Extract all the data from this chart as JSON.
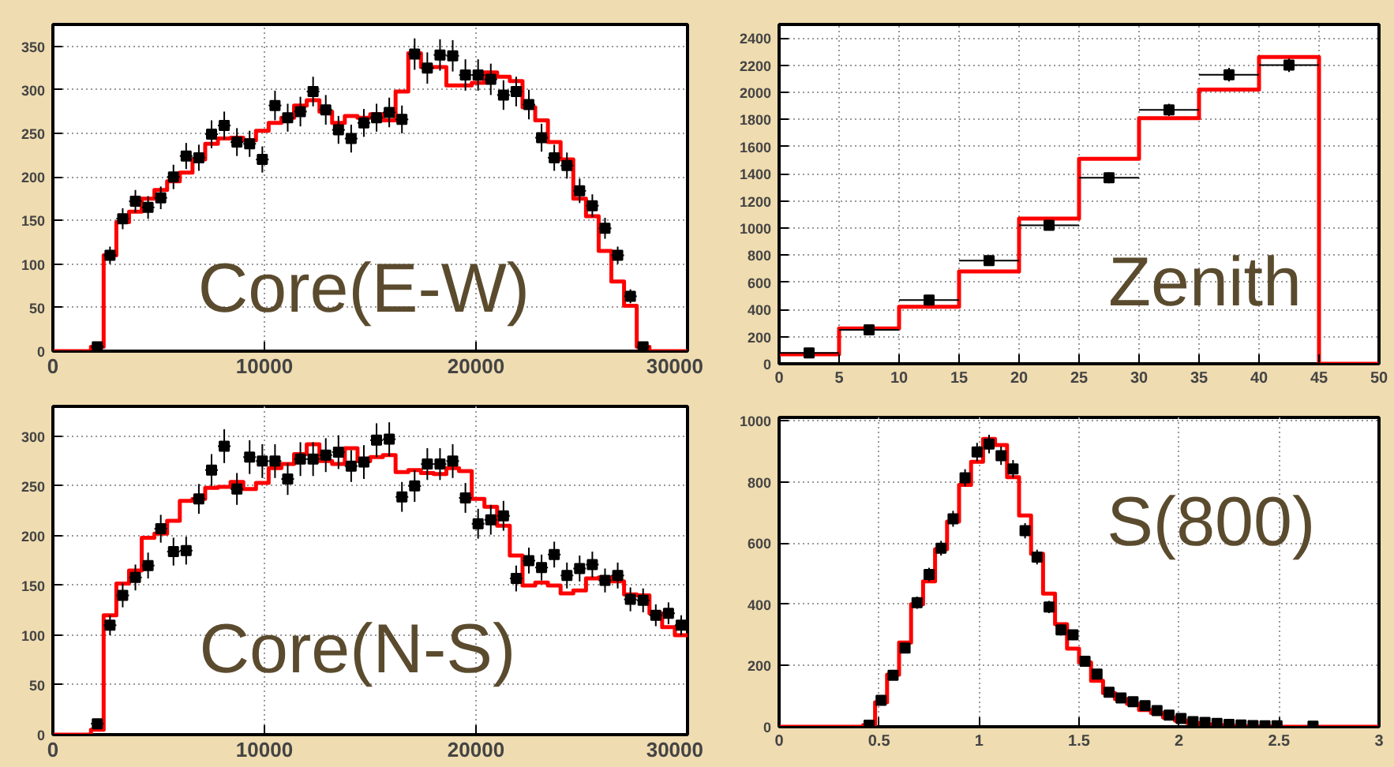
{
  "chart_data": [
    {
      "type": "histogram",
      "annotations": [
        "Core(E-W)"
      ],
      "color": "#ff0000",
      "grid": true,
      "marker": "square",
      "xlim": [
        0,
        30000
      ],
      "xticks": [
        0,
        10000,
        20000,
        30000
      ],
      "ylim": [
        0,
        375
      ],
      "yticks": [
        0,
        50,
        100,
        150,
        200,
        250,
        300,
        350
      ],
      "bins": [
        0,
        1800,
        2400,
        3000,
        3600,
        4200,
        4800,
        5400,
        6000,
        6600,
        7200,
        7800,
        8400,
        9000,
        9600,
        10200,
        10800,
        11400,
        12000,
        12600,
        13200,
        13800,
        14400,
        15000,
        15600,
        16200,
        16800,
        17400,
        18000,
        18600,
        19200,
        19800,
        20400,
        21000,
        21600,
        22200,
        22800,
        23400,
        24000,
        24600,
        25200,
        25800,
        26400,
        27000,
        27600,
        28200,
        30000
      ],
      "values": [
        0,
        5,
        110,
        148,
        160,
        175,
        185,
        195,
        205,
        220,
        238,
        244,
        245,
        242,
        253,
        262,
        268,
        282,
        288,
        275,
        262,
        270,
        268,
        272,
        265,
        298,
        342,
        326,
        326,
        305,
        305,
        308,
        320,
        315,
        310,
        280,
        265,
        240,
        220,
        175,
        155,
        115,
        80,
        52,
        5,
        0
      ],
      "series": [
        {
          "type": "scatter",
          "color": "#000000",
          "x": [
            2100,
            2700,
            3300,
            3900,
            4500,
            5100,
            5700,
            6300,
            6900,
            7500,
            8100,
            8700,
            9300,
            9900,
            10500,
            11100,
            11700,
            12300,
            12900,
            13500,
            14100,
            14700,
            15300,
            15900,
            16500,
            17100,
            17700,
            18300,
            18900,
            19500,
            20100,
            20700,
            21300,
            21900,
            22500,
            23100,
            23700,
            24300,
            24900,
            25500,
            26100,
            26700,
            27300,
            27900
          ],
          "values": [
            5,
            110,
            152,
            172,
            165,
            176,
            200,
            224,
            222,
            249,
            259,
            240,
            238,
            220,
            282,
            268,
            275,
            298,
            277,
            254,
            244,
            262,
            268,
            274,
            266,
            341,
            325,
            340,
            339,
            317,
            317,
            312,
            294,
            298,
            283,
            245,
            222,
            213,
            184,
            167,
            141,
            110,
            63,
            5
          ],
          "errors": [
            2,
            10,
            12,
            13,
            13,
            13,
            14,
            15,
            15,
            16,
            16,
            16,
            15,
            15,
            17,
            16,
            17,
            17,
            17,
            16,
            16,
            16,
            16,
            17,
            16,
            18,
            18,
            18,
            18,
            18,
            18,
            18,
            17,
            17,
            17,
            16,
            15,
            15,
            14,
            13,
            12,
            10,
            8,
            2
          ],
          "xerrors": [
            300,
            300,
            300,
            300,
            300,
            300,
            300,
            300,
            300,
            300,
            300,
            300,
            300,
            300,
            300,
            300,
            300,
            300,
            300,
            300,
            300,
            300,
            300,
            300,
            300,
            300,
            300,
            300,
            300,
            300,
            300,
            300,
            300,
            300,
            300,
            300,
            300,
            300,
            300,
            300,
            300,
            300,
            300,
            300
          ]
        }
      ]
    },
    {
      "type": "histogram",
      "annotations": [
        "Zenith"
      ],
      "color": "#ff0000",
      "grid": true,
      "marker": "square",
      "xlim": [
        0,
        50
      ],
      "xticks": [
        0,
        5,
        10,
        15,
        20,
        25,
        30,
        35,
        40,
        45,
        50
      ],
      "ylim": [
        0,
        2500
      ],
      "yticks": [
        0,
        200,
        400,
        600,
        800,
        1000,
        1200,
        1400,
        1600,
        1800,
        2000,
        2200,
        2400
      ],
      "bins": [
        0,
        5,
        10,
        15,
        20,
        25,
        30,
        35,
        40,
        45,
        50
      ],
      "values": [
        70,
        260,
        420,
        680,
        1070,
        1510,
        1810,
        2020,
        2260,
        0
      ],
      "series": [
        {
          "type": "scatter",
          "color": "#000000",
          "x": [
            2.5,
            7.5,
            12.5,
            17.5,
            22.5,
            27.5,
            32.5,
            37.5,
            42.5
          ],
          "values": [
            80,
            250,
            470,
            760,
            1020,
            1370,
            1870,
            2130,
            2200
          ],
          "errors": [
            10,
            20,
            25,
            30,
            35,
            40,
            45,
            50,
            50
          ],
          "xerrors": [
            2.5,
            2.5,
            2.5,
            2.5,
            2.5,
            2.5,
            2.5,
            2.5,
            2.5
          ]
        }
      ]
    },
    {
      "type": "histogram",
      "annotations": [
        "Core(N-S)"
      ],
      "color": "#ff0000",
      "grid": true,
      "marker": "square",
      "xlim": [
        0,
        30000
      ],
      "xticks": [
        0,
        10000,
        20000,
        30000
      ],
      "ylim": [
        0,
        330
      ],
      "yticks": [
        0,
        50,
        100,
        150,
        200,
        250,
        300
      ],
      "bins": [
        0,
        1800,
        2400,
        3000,
        3600,
        4200,
        4800,
        5400,
        6000,
        6600,
        7200,
        7800,
        8400,
        9000,
        9600,
        10200,
        10800,
        11400,
        12000,
        12600,
        13200,
        13800,
        14400,
        15000,
        15600,
        16200,
        16800,
        17400,
        18000,
        18600,
        19200,
        19800,
        20400,
        21000,
        21600,
        22200,
        22800,
        23400,
        24000,
        24600,
        25200,
        25800,
        26400,
        27000,
        27600,
        28200,
        28800,
        29400,
        30000
      ],
      "values": [
        0,
        5,
        120,
        152,
        165,
        198,
        202,
        215,
        235,
        237,
        248,
        249,
        254,
        247,
        253,
        268,
        272,
        282,
        292,
        275,
        272,
        288,
        275,
        279,
        281,
        264,
        266,
        263,
        262,
        268,
        265,
        237,
        229,
        210,
        180,
        150,
        153,
        150,
        142,
        145,
        157,
        158,
        154,
        141,
        140,
        122,
        108,
        100
      ],
      "series": [
        {
          "type": "scatter",
          "color": "#000000",
          "x": [
            2100,
            2700,
            3300,
            3900,
            4500,
            5100,
            5700,
            6300,
            6900,
            7500,
            8100,
            8700,
            9300,
            9900,
            10500,
            11100,
            11700,
            12300,
            12900,
            13500,
            14100,
            14700,
            15300,
            15900,
            16500,
            17100,
            17700,
            18300,
            18900,
            19500,
            20100,
            20700,
            21300,
            21900,
            22500,
            23100,
            23700,
            24300,
            24900,
            25500,
            26100,
            26700,
            27300,
            27900,
            28500,
            29100,
            29700
          ],
          "values": [
            11,
            110,
            140,
            158,
            170,
            207,
            184,
            185,
            237,
            266,
            290,
            247,
            279,
            275,
            275,
            257,
            277,
            277,
            281,
            284,
            270,
            274,
            296,
            297,
            239,
            250,
            272,
            272,
            275,
            238,
            212,
            216,
            220,
            157,
            175,
            168,
            181,
            160,
            167,
            171,
            155,
            160,
            136,
            135,
            120,
            122,
            110
          ],
          "errors": [
            3,
            10,
            12,
            13,
            13,
            14,
            14,
            14,
            15,
            16,
            17,
            16,
            17,
            17,
            17,
            16,
            17,
            17,
            17,
            17,
            16,
            17,
            17,
            17,
            15,
            16,
            16,
            16,
            17,
            15,
            15,
            15,
            15,
            13,
            13,
            13,
            13,
            13,
            13,
            13,
            12,
            13,
            12,
            12,
            11,
            11,
            10
          ],
          "xerrors": [
            300,
            300,
            300,
            300,
            300,
            300,
            300,
            300,
            300,
            300,
            300,
            300,
            300,
            300,
            300,
            300,
            300,
            300,
            300,
            300,
            300,
            300,
            300,
            300,
            300,
            300,
            300,
            300,
            300,
            300,
            300,
            300,
            300,
            300,
            300,
            300,
            300,
            300,
            300,
            300,
            300,
            300,
            300,
            300,
            300,
            300,
            300
          ]
        }
      ]
    },
    {
      "type": "histogram",
      "annotations": [
        "S(800)"
      ],
      "color": "#ff0000",
      "grid": true,
      "marker": "square",
      "xlim": [
        0,
        3
      ],
      "xticks": [
        0,
        0.5,
        1,
        1.5,
        2,
        2.5,
        3
      ],
      "ylim": [
        0,
        1010
      ],
      "yticks": [
        0,
        200,
        400,
        600,
        800,
        1000
      ],
      "bins": [
        0,
        0.42,
        0.48,
        0.54,
        0.6,
        0.66,
        0.72,
        0.78,
        0.84,
        0.9,
        0.96,
        1.02,
        1.08,
        1.14,
        1.2,
        1.26,
        1.32,
        1.38,
        1.44,
        1.5,
        1.56,
        1.62,
        1.68,
        1.74,
        1.8,
        1.86,
        1.92,
        1.98,
        2.04,
        2.1,
        2.16,
        2.22,
        2.28,
        2.34,
        2.4,
        2.46,
        2.52,
        3
      ],
      "values": [
        0,
        5,
        80,
        170,
        275,
        400,
        475,
        580,
        670,
        790,
        865,
        940,
        920,
        815,
        690,
        565,
        435,
        335,
        255,
        210,
        150,
        110,
        90,
        75,
        55,
        45,
        30,
        20,
        12,
        8,
        5,
        3,
        2,
        1,
        1,
        0,
        0
      ],
      "series": [
        {
          "type": "scatter",
          "color": "#000000",
          "x": [
            0.45,
            0.51,
            0.57,
            0.63,
            0.69,
            0.75,
            0.81,
            0.87,
            0.93,
            0.99,
            1.05,
            1.11,
            1.17,
            1.23,
            1.29,
            1.35,
            1.41,
            1.47,
            1.53,
            1.59,
            1.65,
            1.71,
            1.77,
            1.83,
            1.89,
            1.95,
            2.01,
            2.07,
            2.13,
            2.19,
            2.25,
            2.31,
            2.37,
            2.43,
            2.49,
            2.67
          ],
          "values": [
            5,
            86,
            168,
            257,
            405,
            497,
            583,
            679,
            813,
            897,
            923,
            885,
            842,
            640,
            554,
            391,
            316,
            300,
            214,
            172,
            113,
            94,
            82,
            69,
            53,
            38,
            27,
            17,
            14,
            11,
            8,
            6,
            4,
            3,
            3,
            2
          ],
          "errors": [
            null,
            null,
            null,
            null,
            20,
            22,
            24,
            26,
            28,
            30,
            30,
            30,
            29,
            25,
            24,
            20,
            18,
            17,
            15,
            null,
            null,
            null,
            null,
            null,
            null,
            null,
            null,
            null,
            null,
            null,
            null,
            null,
            null,
            null,
            null,
            null
          ]
        }
      ]
    }
  ]
}
